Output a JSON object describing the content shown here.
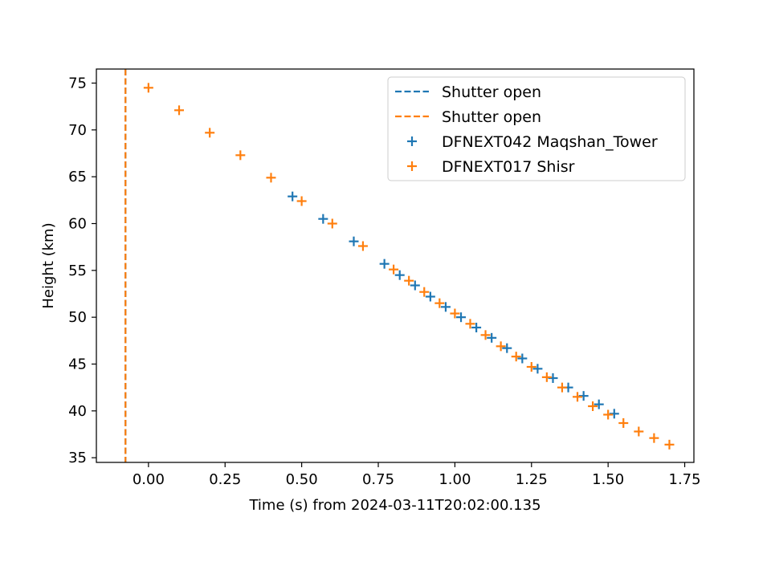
{
  "chart_data": {
    "type": "scatter",
    "title": "",
    "xlabel": "Time (s) from 2024-03-11T20:02:00.135",
    "ylabel": "Height (km)",
    "xlim": [
      -0.17,
      1.78
    ],
    "ylim": [
      34.5,
      76.5
    ],
    "xticks": [
      0.0,
      0.25,
      0.5,
      0.75,
      1.0,
      1.25,
      1.5,
      1.75
    ],
    "xtick_labels": [
      "0.00",
      "0.25",
      "0.50",
      "0.75",
      "1.00",
      "1.25",
      "1.50",
      "1.75"
    ],
    "yticks": [
      35,
      40,
      45,
      50,
      55,
      60,
      65,
      70,
      75
    ],
    "ytick_labels": [
      "35",
      "40",
      "45",
      "50",
      "55",
      "60",
      "65",
      "70",
      "75"
    ],
    "grid": false,
    "legend_position": "top-right",
    "vlines": [
      {
        "label": "Shutter open",
        "x": -0.075,
        "color": "#1f77b4",
        "style": "dashed"
      },
      {
        "label": "Shutter open",
        "x": -0.075,
        "color": "#ff7f0e",
        "style": "dashed"
      }
    ],
    "series": [
      {
        "name": "DFNEXT042 Maqshan_Tower",
        "color": "#1f77b4",
        "marker": "plus",
        "x": [
          0.47,
          0.57,
          0.67,
          0.77,
          0.82,
          0.87,
          0.92,
          0.97,
          1.02,
          1.07,
          1.12,
          1.17,
          1.22,
          1.27,
          1.32,
          1.37,
          1.42,
          1.47,
          1.52
        ],
        "y": [
          62.9,
          60.5,
          58.1,
          55.7,
          54.5,
          53.4,
          52.2,
          51.1,
          50.0,
          48.9,
          47.8,
          46.7,
          45.6,
          44.5,
          43.5,
          42.5,
          41.6,
          40.7,
          39.7
        ]
      },
      {
        "name": "DFNEXT017 Shisr",
        "color": "#ff7f0e",
        "marker": "plus",
        "x": [
          0.0,
          0.1,
          0.2,
          0.3,
          0.4,
          0.5,
          0.6,
          0.7,
          0.8,
          0.85,
          0.9,
          0.95,
          1.0,
          1.05,
          1.1,
          1.15,
          1.2,
          1.25,
          1.3,
          1.35,
          1.4,
          1.45,
          1.5,
          1.55,
          1.6,
          1.65,
          1.7
        ],
        "y": [
          74.5,
          72.1,
          69.7,
          67.3,
          64.9,
          62.4,
          60.0,
          57.6,
          55.1,
          53.9,
          52.7,
          51.5,
          50.4,
          49.3,
          48.1,
          46.9,
          45.8,
          44.7,
          43.6,
          42.5,
          41.5,
          40.5,
          39.6,
          38.7,
          37.8,
          37.1,
          36.4
        ]
      }
    ]
  }
}
